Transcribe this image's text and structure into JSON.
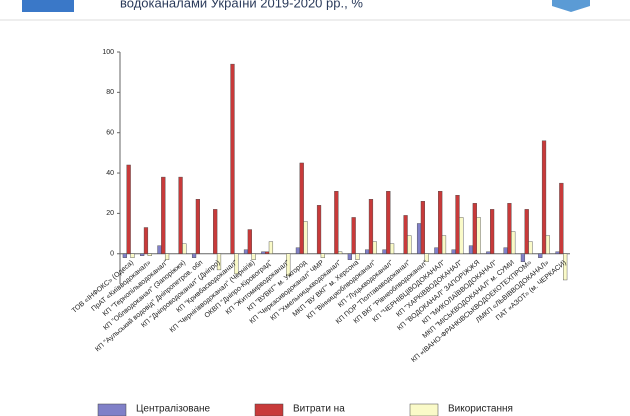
{
  "chart_data": {
    "type": "bar",
    "title": "водоканалами України 2019-2020 рр., %",
    "categories": [
      "ТОВ «ІНФОКС» (Одеса)",
      "ПрАТ «Київводоканал»",
      "КП \"Тернопільводоканал\"",
      "КП \"Облводоканал\" (Запоріжжя)",
      "КП \"Аульський водовід\" Дніпропетров. обл",
      "КП \"Дніпроводоканал\" (Дніпро)",
      "КП \"Кривбасводоканал\"",
      "КП \"Чернігівводоканал\" (Чернігів)",
      "ОКВП \"Дніпро-Кіровоград\"",
      "КП \"Житомирводоканал\"",
      "КП \"ВУВКГ\" м. Ужгород",
      "КП \"Черкасиводоканал\" ЧМР",
      "КП \"Хмельницькводоканал\"",
      "МКП \"ВУ ВКГ\" м. Херсона",
      "КП \"Вінницяоблводоканал\"",
      "КП \"Луцькводоканал\"",
      "КП ПОР \"Полтававодоканал\"",
      "КП ВКГ \"Рівнеоблводоканал\"",
      "КП \"ЧЕРНІВЦІВОДОКАНАЛ\"",
      "КП \"ХАРКІВВОДОКАНАЛ\"",
      "КП \"ВОДОКАНАЛ\" ЗАПОРІЖЖЯ",
      "КП \"МИКОЛАЇВВОДОКАНАЛ\"",
      "МКП \"МІСЬКВОДОКАНАЛ\" м. СУМИ",
      "КП «ІВАНО-ФРАНКІВСЬКВОДОЕКОТЕХПРОМ»",
      "ЛМКП «ЛЬВІВВОДОКАНАЛ»",
      "ПАТ «АЗОТ» (м. ЧЕРКАСИ)"
    ],
    "series": [
      {
        "name": "Централізоване",
        "color": "#8080c8",
        "values": [
          -2,
          -1,
          4,
          0,
          -2,
          0,
          0,
          2,
          1,
          0,
          3,
          0,
          0,
          -3,
          2,
          2,
          0,
          15,
          3,
          2,
          4,
          1,
          3,
          -4,
          -2,
          1
        ]
      },
      {
        "name": "Витрати на",
        "color": "#c83a3a",
        "values": [
          44,
          13,
          38,
          38,
          27,
          22,
          94,
          12,
          1,
          0,
          45,
          24,
          31,
          18,
          27,
          31,
          19,
          26,
          31,
          29,
          25,
          22,
          25,
          22,
          56,
          35
        ]
      },
      {
        "name": "Використання",
        "color": "#fafac8",
        "values": [
          -2,
          -1,
          -3,
          5,
          0,
          -8,
          -10,
          -3,
          6,
          -11,
          16,
          -2,
          1,
          -3,
          6,
          5,
          9,
          -4,
          9,
          18,
          18,
          0,
          11,
          6,
          9,
          -13
        ]
      }
    ],
    "ylim": [
      -15,
      100
    ],
    "yticks": [
      0,
      20,
      40,
      60,
      80,
      100
    ]
  }
}
